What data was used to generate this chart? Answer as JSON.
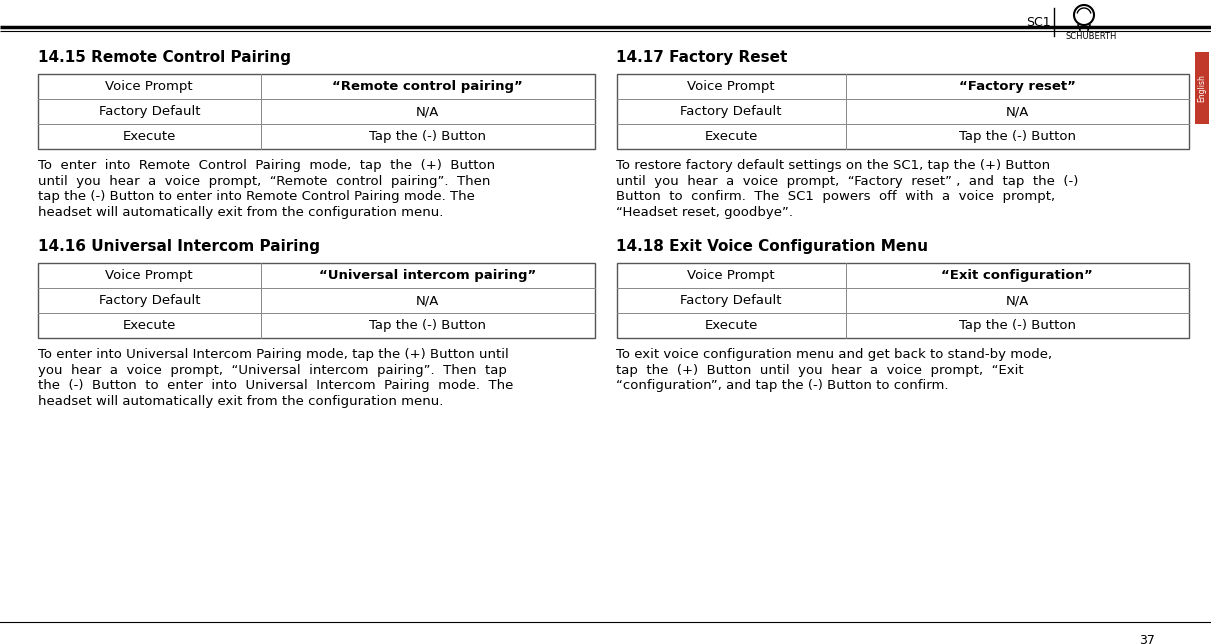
{
  "page_bg": "#ffffff",
  "footer_text": "37",
  "sections": [
    {
      "title": "14.15 Remote Control Pairing",
      "table_rows": [
        [
          "Voice Prompt",
          "“Remote control pairing”"
        ],
        [
          "Factory Default",
          "N/A"
        ],
        [
          "Execute",
          "Tap the (-) Button"
        ]
      ],
      "para_lines": [
        "To  enter  into  Remote  Control  Pairing  mode,  tap  the  (+)  Button",
        "until  you  hear  a  voice  prompt,  “Remote  control  pairing”.  Then",
        "tap the (-) Button to enter into Remote Control Pairing mode. The",
        "headset will automatically exit from the configuration menu."
      ],
      "para_bold": [
        [
          false,
          false,
          false,
          false,
          false,
          false,
          false,
          false,
          false,
          false,
          false
        ],
        [
          false,
          false,
          false,
          false,
          false,
          false,
          true,
          false
        ],
        [
          false,
          false,
          false,
          false,
          false,
          false,
          false,
          false,
          false,
          false,
          false,
          false
        ],
        [
          false,
          false,
          false,
          false,
          false,
          false,
          false,
          false,
          false
        ]
      ]
    },
    {
      "title": "14.16 Universal Intercom Pairing",
      "table_rows": [
        [
          "Voice Prompt",
          "“Universal intercom pairing”"
        ],
        [
          "Factory Default",
          "N/A"
        ],
        [
          "Execute",
          "Tap the (-) Button"
        ]
      ],
      "para_lines": [
        "To enter into Universal Intercom Pairing mode, tap the (+) Button until",
        "you  hear  a  voice  prompt,  “Universal  intercom  pairing”.  Then  tap",
        "the  (-)  Button  to  enter  into  Universal  Intercom  Pairing  mode.  The",
        "headset will automatically exit from the configuration menu."
      ]
    },
    {
      "title": "14.17 Factory Reset",
      "table_rows": [
        [
          "Voice Prompt",
          "“Factory reset”"
        ],
        [
          "Factory Default",
          "N/A"
        ],
        [
          "Execute",
          "Tap the (-) Button"
        ]
      ],
      "para_lines": [
        "To restore factory default settings on the SC1, tap the (+) Button",
        "until  you  hear  a  voice  prompt,  “Factory  reset” ,  and  tap  the  (-)",
        "Button  to  confirm.  The  SC1  powers  off  with  a  voice  prompt,",
        "“Headset reset, goodbye”."
      ]
    },
    {
      "title": "14.18 Exit Voice Configuration Menu",
      "table_rows": [
        [
          "Voice Prompt",
          "“Exit configuration”"
        ],
        [
          "Factory Default",
          "N/A"
        ],
        [
          "Execute",
          "Tap the (-) Button"
        ]
      ],
      "para_lines": [
        "To exit voice configuration menu and get back to stand-by mode,",
        "tap  the  (+)  Button  until  you  hear  a  voice  prompt,  “Exit",
        "“configuration”, and tap the (-) Button to confirm."
      ]
    }
  ],
  "sidebar_color": "#c0392b",
  "sidebar_text": "English",
  "title_fontsize": 11,
  "body_fontsize": 9.5,
  "table_fontsize": 9.5,
  "footer_fontsize": 9,
  "header_sc1_fontsize": 9,
  "header_brand_fontsize": 6
}
